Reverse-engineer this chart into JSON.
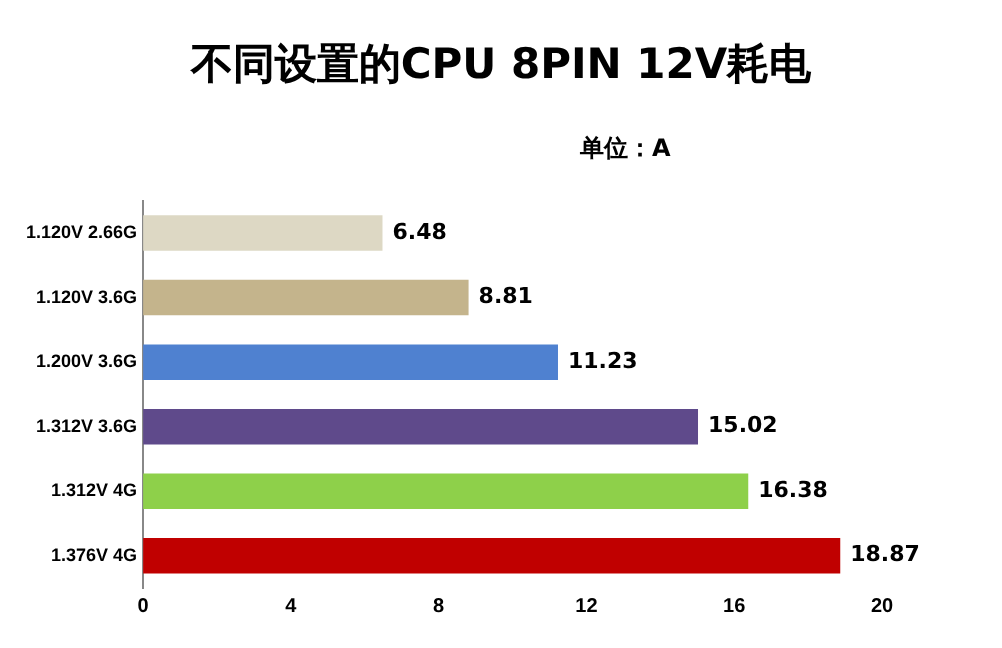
{
  "chart_data": {
    "type": "bar",
    "orientation": "horizontal",
    "title": "不同设置的CPU 8PIN 12V耗电",
    "subtitle": "单位：A",
    "categories": [
      "1.120V 2.66G",
      "1.120V 3.6G",
      "1.200V 3.6G",
      "1.312V 3.6G",
      "1.312V 4G",
      "1.376V 4G"
    ],
    "values": [
      6.48,
      8.81,
      11.23,
      15.02,
      16.38,
      18.87
    ],
    "colors": [
      "#ddd8c4",
      "#c4b48c",
      "#4f81d0",
      "#5f4a8b",
      "#8ed04a",
      "#c00000"
    ],
    "xlim": [
      0,
      20
    ],
    "xticks": [
      0,
      4,
      8,
      12,
      16,
      20
    ],
    "grid": false,
    "data_labels": true
  }
}
